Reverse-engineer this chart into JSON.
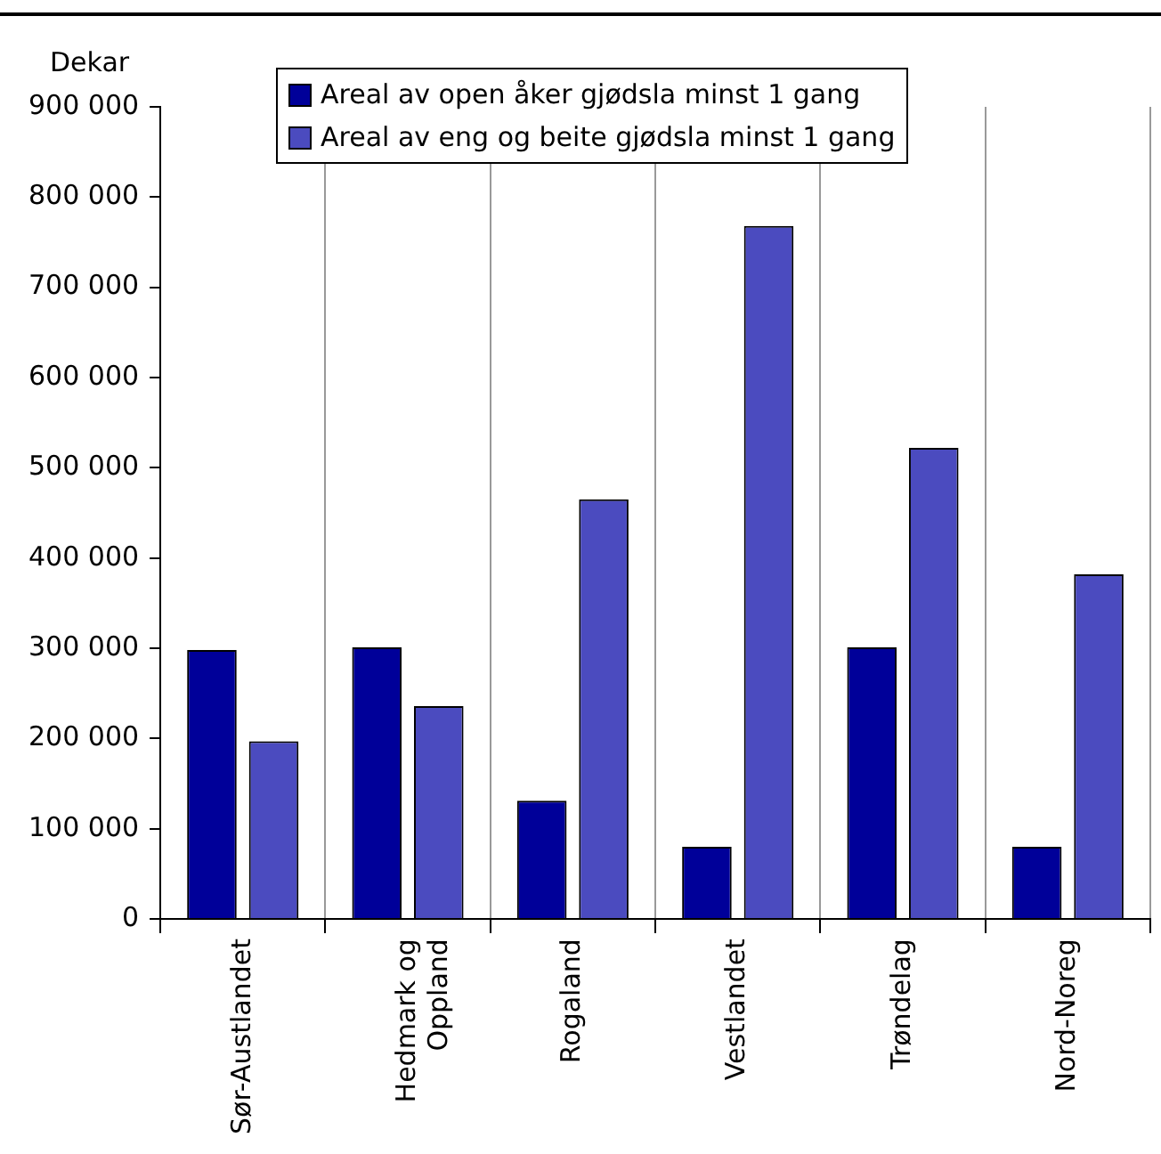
{
  "chart_data": {
    "type": "bar",
    "ylabel": "Dekar",
    "categories": [
      "Sør-Austlandet",
      "Hedmark og Oppland",
      "Rogaland",
      "Vestlandet",
      "Trøndelag",
      "Nord-Noreg"
    ],
    "series": [
      {
        "name": "Areal av open åker gjødsla minst 1 gang",
        "color": "#000099",
        "values": [
          298000,
          301000,
          131000,
          80000,
          301000,
          80000
        ]
      },
      {
        "name": "Areal av eng og beite gjødsla minst 1 gang",
        "color": "#4b4bbf",
        "values": [
          197000,
          236000,
          465000,
          768000,
          522000,
          382000
        ]
      }
    ],
    "ylim": [
      0,
      900000
    ],
    "yticks": [
      {
        "value": 0,
        "label": "0"
      },
      {
        "value": 100000,
        "label": "100 000"
      },
      {
        "value": 200000,
        "label": "200 000"
      },
      {
        "value": 300000,
        "label": "300 000"
      },
      {
        "value": 400000,
        "label": "400 000"
      },
      {
        "value": 500000,
        "label": "500 000"
      },
      {
        "value": 600000,
        "label": "600 000"
      },
      {
        "value": 700000,
        "label": "700 000"
      },
      {
        "value": 800000,
        "label": "800 000"
      },
      {
        "value": 900000,
        "label": "900 000"
      }
    ],
    "grid": "x",
    "legend": "top"
  }
}
